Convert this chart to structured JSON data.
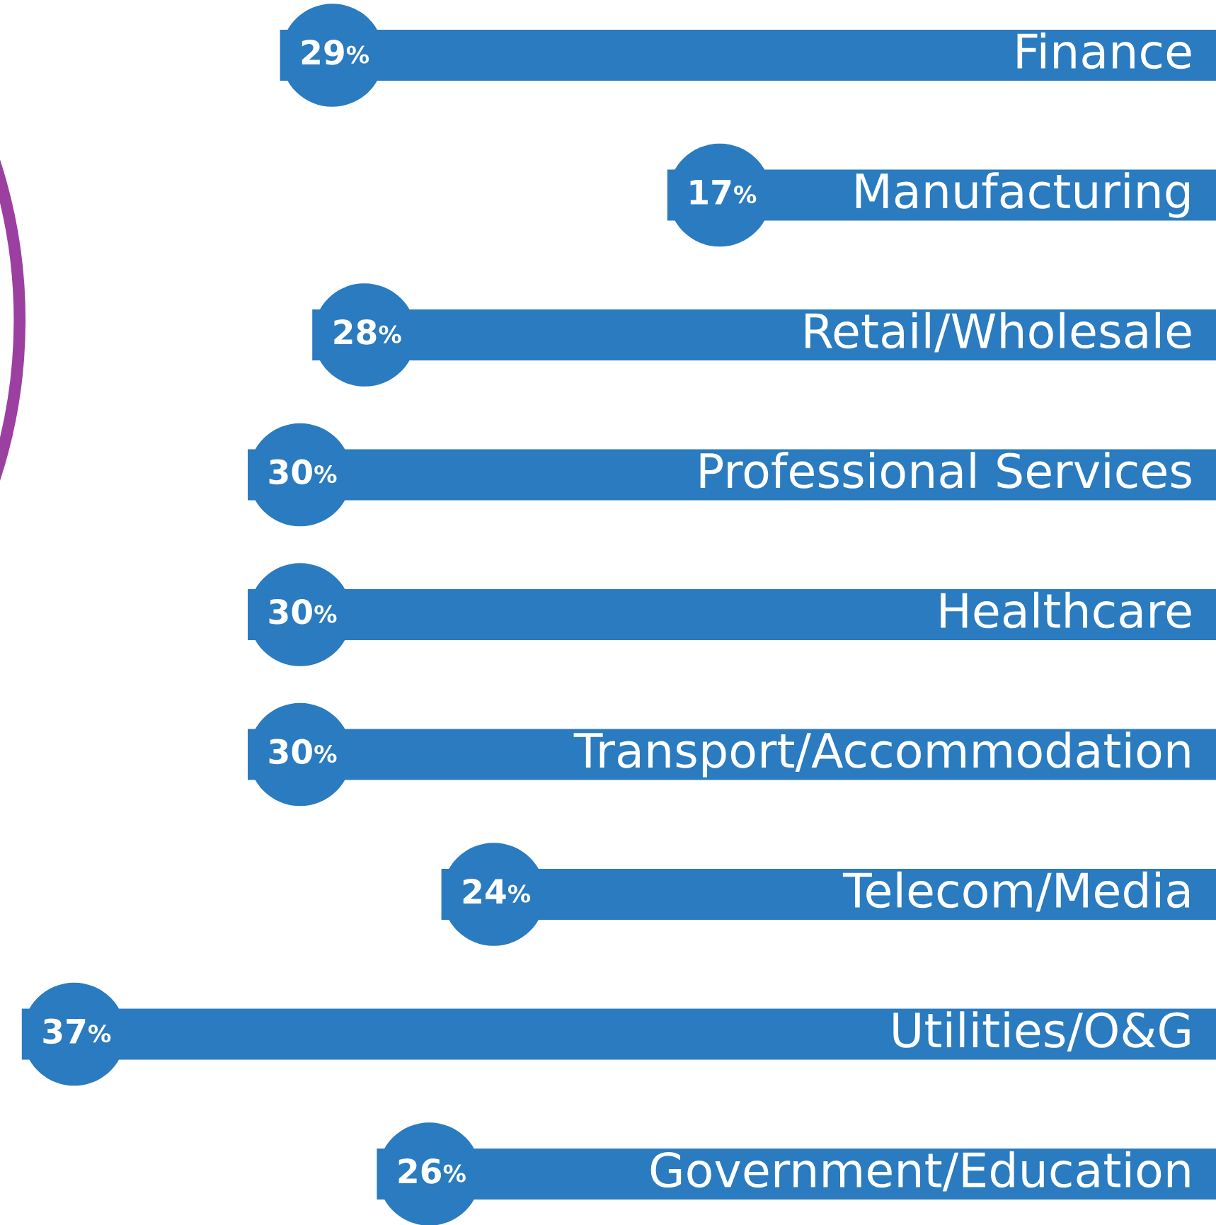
{
  "chart_data": {
    "type": "bar",
    "orientation": "horizontal",
    "categories": [
      "Finance",
      "Manufacturing",
      "Retail/Wholesale",
      "Professional Services",
      "Healthcare",
      "Transport/Accommodation",
      "Telecom/Media",
      "Utilities/O&G",
      "Government/Education"
    ],
    "values": [
      29,
      17,
      28,
      30,
      30,
      30,
      24,
      37,
      26
    ],
    "value_labels": [
      "29%",
      "17%",
      "28%",
      "30%",
      "30%",
      "30%",
      "24%",
      "37%",
      "26%"
    ],
    "color": "#2a7bbf"
  }
}
